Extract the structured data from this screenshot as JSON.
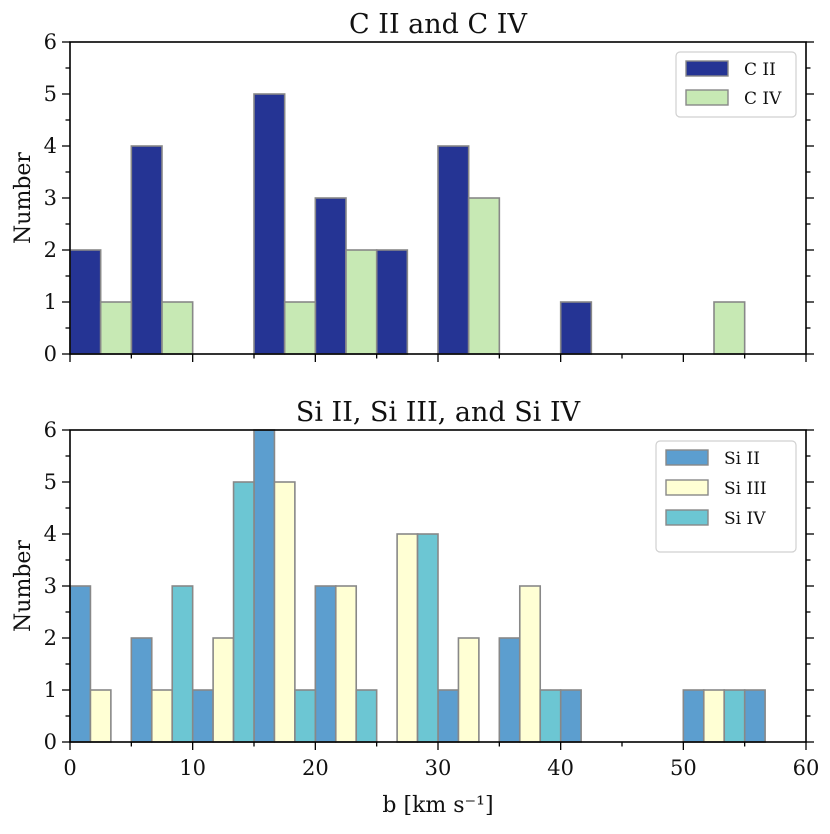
{
  "chart_data": [
    {
      "type": "bar",
      "title": "C II and C IV",
      "xlabel": "",
      "ylabel": "Number",
      "xlim": [
        0,
        60
      ],
      "ylim": [
        0,
        6
      ],
      "xticks": [
        0,
        10,
        20,
        30,
        40,
        50,
        60
      ],
      "yticks": [
        0,
        1,
        2,
        3,
        4,
        5,
        6
      ],
      "show_xtick_labels": false,
      "bin_width": 5,
      "bin_starts": [
        0,
        5,
        10,
        15,
        20,
        25,
        30,
        35,
        40,
        45,
        50,
        55
      ],
      "legend_position": "top-right",
      "series": [
        {
          "name": "C II",
          "color": "#253494",
          "values": [
            2,
            4,
            0,
            5,
            3,
            2,
            4,
            0,
            1,
            0,
            0,
            0
          ]
        },
        {
          "name": "C IV",
          "color": "#c7e9b4",
          "values": [
            1,
            1,
            0,
            1,
            2,
            0,
            3,
            0,
            0,
            0,
            1,
            0
          ]
        }
      ]
    },
    {
      "type": "bar",
      "title": "Si II, Si III, and Si IV",
      "xlabel": "b [km  s⁻¹]",
      "ylabel": "Number",
      "xlim": [
        0,
        60
      ],
      "ylim": [
        0,
        6
      ],
      "xticks": [
        0,
        10,
        20,
        30,
        40,
        50,
        60
      ],
      "yticks": [
        0,
        1,
        2,
        3,
        4,
        5,
        6
      ],
      "show_xtick_labels": true,
      "bin_width": 5,
      "bin_starts": [
        0,
        5,
        10,
        15,
        20,
        25,
        30,
        35,
        40,
        45,
        50,
        55
      ],
      "legend_position": "top-right",
      "series": [
        {
          "name": "Si II",
          "color": "#5c9ecf",
          "values": [
            3,
            2,
            1,
            6,
            3,
            0,
            1,
            2,
            1,
            0,
            1,
            1
          ]
        },
        {
          "name": "Si III",
          "color": "#ffffd4",
          "values": [
            1,
            1,
            2,
            5,
            3,
            4,
            2,
            3,
            0,
            0,
            1,
            0
          ]
        },
        {
          "name": "Si IV",
          "color": "#6cc6d3",
          "values": [
            0,
            3,
            5,
            1,
            1,
            4,
            0,
            1,
            0,
            0,
            1,
            0
          ]
        }
      ]
    }
  ]
}
